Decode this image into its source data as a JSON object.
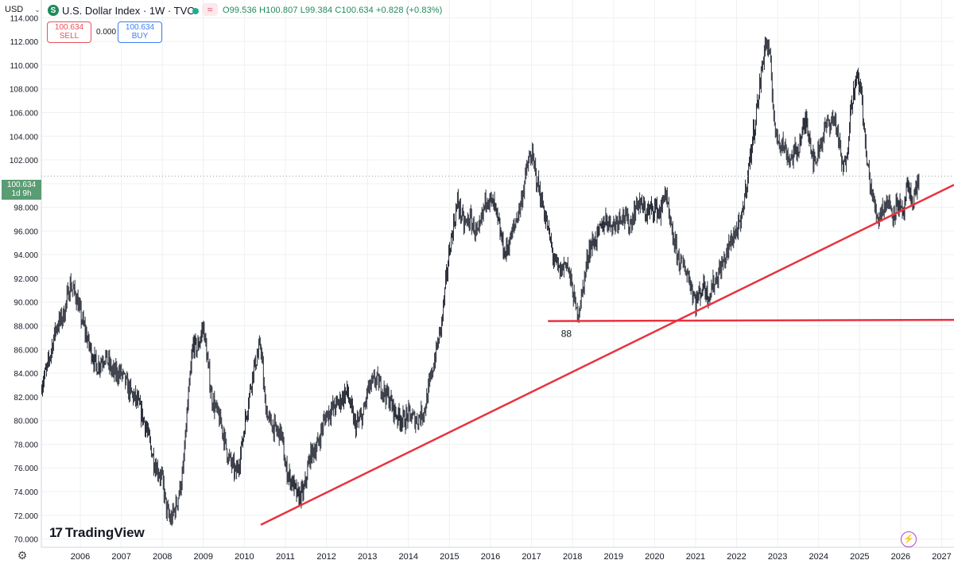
{
  "header": {
    "currency": "USD",
    "symbol_icon": "S",
    "title": "U.S. Dollar Index · 1W · TVC",
    "pulse_icon": "≈",
    "ohlc": "O99.536 H100.807 L99.384 C100.634 +0.828 (+0.83%)"
  },
  "trade": {
    "sell_price": "100.634",
    "sell_label": "SELL",
    "spread": "0.000",
    "buy_price": "100.634",
    "buy_label": "BUY"
  },
  "last_price": {
    "value": "100.634",
    "countdown": "1d 9h"
  },
  "brand": {
    "name": "TradingView",
    "mark": "17"
  },
  "colors": {
    "bar": "#2a2e39",
    "trendline": "#e8323f",
    "last_price_tag": "#5a9c73",
    "grid": "#eef0f3",
    "ohlc_text": "#1f8a5b"
  },
  "chart_data": {
    "type": "line",
    "title": "U.S. Dollar Index",
    "interval": "1W",
    "ylim": [
      69.3,
      115.5
    ],
    "xlim": [
      2005.05,
      2027.3
    ],
    "y_ticks": [
      "70.000",
      "72.000",
      "74.000",
      "76.000",
      "78.000",
      "80.000",
      "82.000",
      "84.000",
      "86.000",
      "88.000",
      "90.000",
      "92.000",
      "94.000",
      "96.000",
      "98.000",
      "100.000",
      "102.000",
      "104.000",
      "106.000",
      "108.000",
      "110.000",
      "112.000",
      "114.000"
    ],
    "x_ticks": [
      "2006",
      "2007",
      "2008",
      "2009",
      "2010",
      "2011",
      "2012",
      "2013",
      "2014",
      "2015",
      "2016",
      "2017",
      "2018",
      "2019",
      "2020",
      "2021",
      "2022",
      "2023",
      "2024",
      "2025",
      "2026",
      "2027"
    ],
    "grid": true,
    "series": [
      {
        "type": "weekly-bars",
        "x": [
          2005.0,
          2005.2,
          2005.4,
          2005.6,
          2005.75,
          2005.9,
          2006.0,
          2006.2,
          2006.4,
          2006.6,
          2006.8,
          2007.0,
          2007.2,
          2007.4,
          2007.6,
          2007.8,
          2008.0,
          2008.1,
          2008.2,
          2008.35,
          2008.5,
          2008.6,
          2008.75,
          2008.85,
          2009.0,
          2009.2,
          2009.45,
          2009.6,
          2009.8,
          2009.9,
          2010.0,
          2010.2,
          2010.4,
          2010.5,
          2010.6,
          2010.8,
          2010.9,
          2011.0,
          2011.2,
          2011.3,
          2011.45,
          2011.6,
          2011.8,
          2011.9,
          2012.0,
          2012.3,
          2012.5,
          2012.7,
          2012.9,
          2013.0,
          2013.2,
          2013.5,
          2013.7,
          2013.9,
          2014.0,
          2014.2,
          2014.4,
          2014.6,
          2014.8,
          2015.0,
          2015.2,
          2015.35,
          2015.5,
          2015.7,
          2015.9,
          2016.1,
          2016.35,
          2016.55,
          2016.75,
          2016.9,
          2017.0,
          2017.15,
          2017.35,
          2017.55,
          2017.7,
          2017.85,
          2018.0,
          2018.1,
          2018.2,
          2018.4,
          2018.6,
          2018.8,
          2019.0,
          2019.2,
          2019.4,
          2019.6,
          2019.8,
          2020.0,
          2020.15,
          2020.25,
          2020.4,
          2020.6,
          2020.8,
          2021.0,
          2021.2,
          2021.3,
          2021.5,
          2021.7,
          2021.9,
          2022.1,
          2022.3,
          2022.5,
          2022.7,
          2022.8,
          2022.95,
          2023.1,
          2023.3,
          2023.5,
          2023.7,
          2023.9,
          2024.0,
          2024.2,
          2024.4,
          2024.6,
          2024.7,
          2024.8,
          2024.95,
          2025.05,
          2025.15,
          2025.3,
          2025.45,
          2025.55,
          2025.7,
          2025.8,
          2025.95,
          2026.05,
          2026.15,
          2026.3,
          2026.45
        ],
        "y": [
          82.5,
          84.5,
          87.8,
          89.0,
          91.5,
          90.5,
          89.0,
          86.5,
          84.5,
          85.5,
          84.0,
          84.0,
          82.5,
          81.5,
          79.5,
          76.5,
          75.0,
          72.5,
          71.5,
          73.0,
          75.5,
          80.5,
          86.5,
          86.0,
          88.0,
          82.0,
          79.5,
          77.0,
          75.5,
          77.0,
          79.5,
          84.0,
          86.5,
          81.5,
          80.0,
          79.0,
          79.0,
          76.0,
          74.5,
          73.5,
          74.0,
          77.0,
          78.0,
          79.5,
          80.5,
          81.5,
          82.5,
          79.5,
          80.5,
          82.5,
          83.5,
          82.0,
          80.5,
          80.0,
          80.5,
          80.0,
          81.0,
          84.5,
          88.0,
          94.5,
          98.5,
          96.5,
          97.0,
          95.5,
          99.0,
          98.0,
          94.0,
          96.0,
          98.5,
          101.5,
          102.5,
          100.0,
          97.0,
          93.5,
          92.5,
          93.5,
          91.0,
          89.0,
          90.0,
          94.5,
          95.5,
          97.0,
          96.5,
          97.5,
          96.5,
          98.5,
          97.5,
          98.0,
          97.5,
          99.5,
          96.0,
          93.5,
          92.5,
          90.0,
          91.5,
          90.5,
          92.0,
          93.5,
          95.5,
          96.5,
          101.5,
          106.5,
          112.0,
          111.0,
          104.0,
          103.5,
          102.0,
          103.0,
          105.5,
          101.5,
          103.0,
          105.0,
          105.5,
          101.0,
          103.0,
          107.0,
          109.0,
          107.5,
          102.5,
          99.0,
          97.0,
          98.0,
          98.5,
          97.5,
          98.5,
          97.0,
          99.5,
          98.5,
          100.6
        ]
      },
      {
        "type": "trendline",
        "x": [
          2010.4,
          2027.3
        ],
        "y": [
          71.2,
          99.9
        ]
      },
      {
        "type": "horizontal-line",
        "x": [
          2017.4,
          2027.3
        ],
        "y": [
          88.4,
          88.5
        ],
        "label": "88"
      }
    ]
  }
}
